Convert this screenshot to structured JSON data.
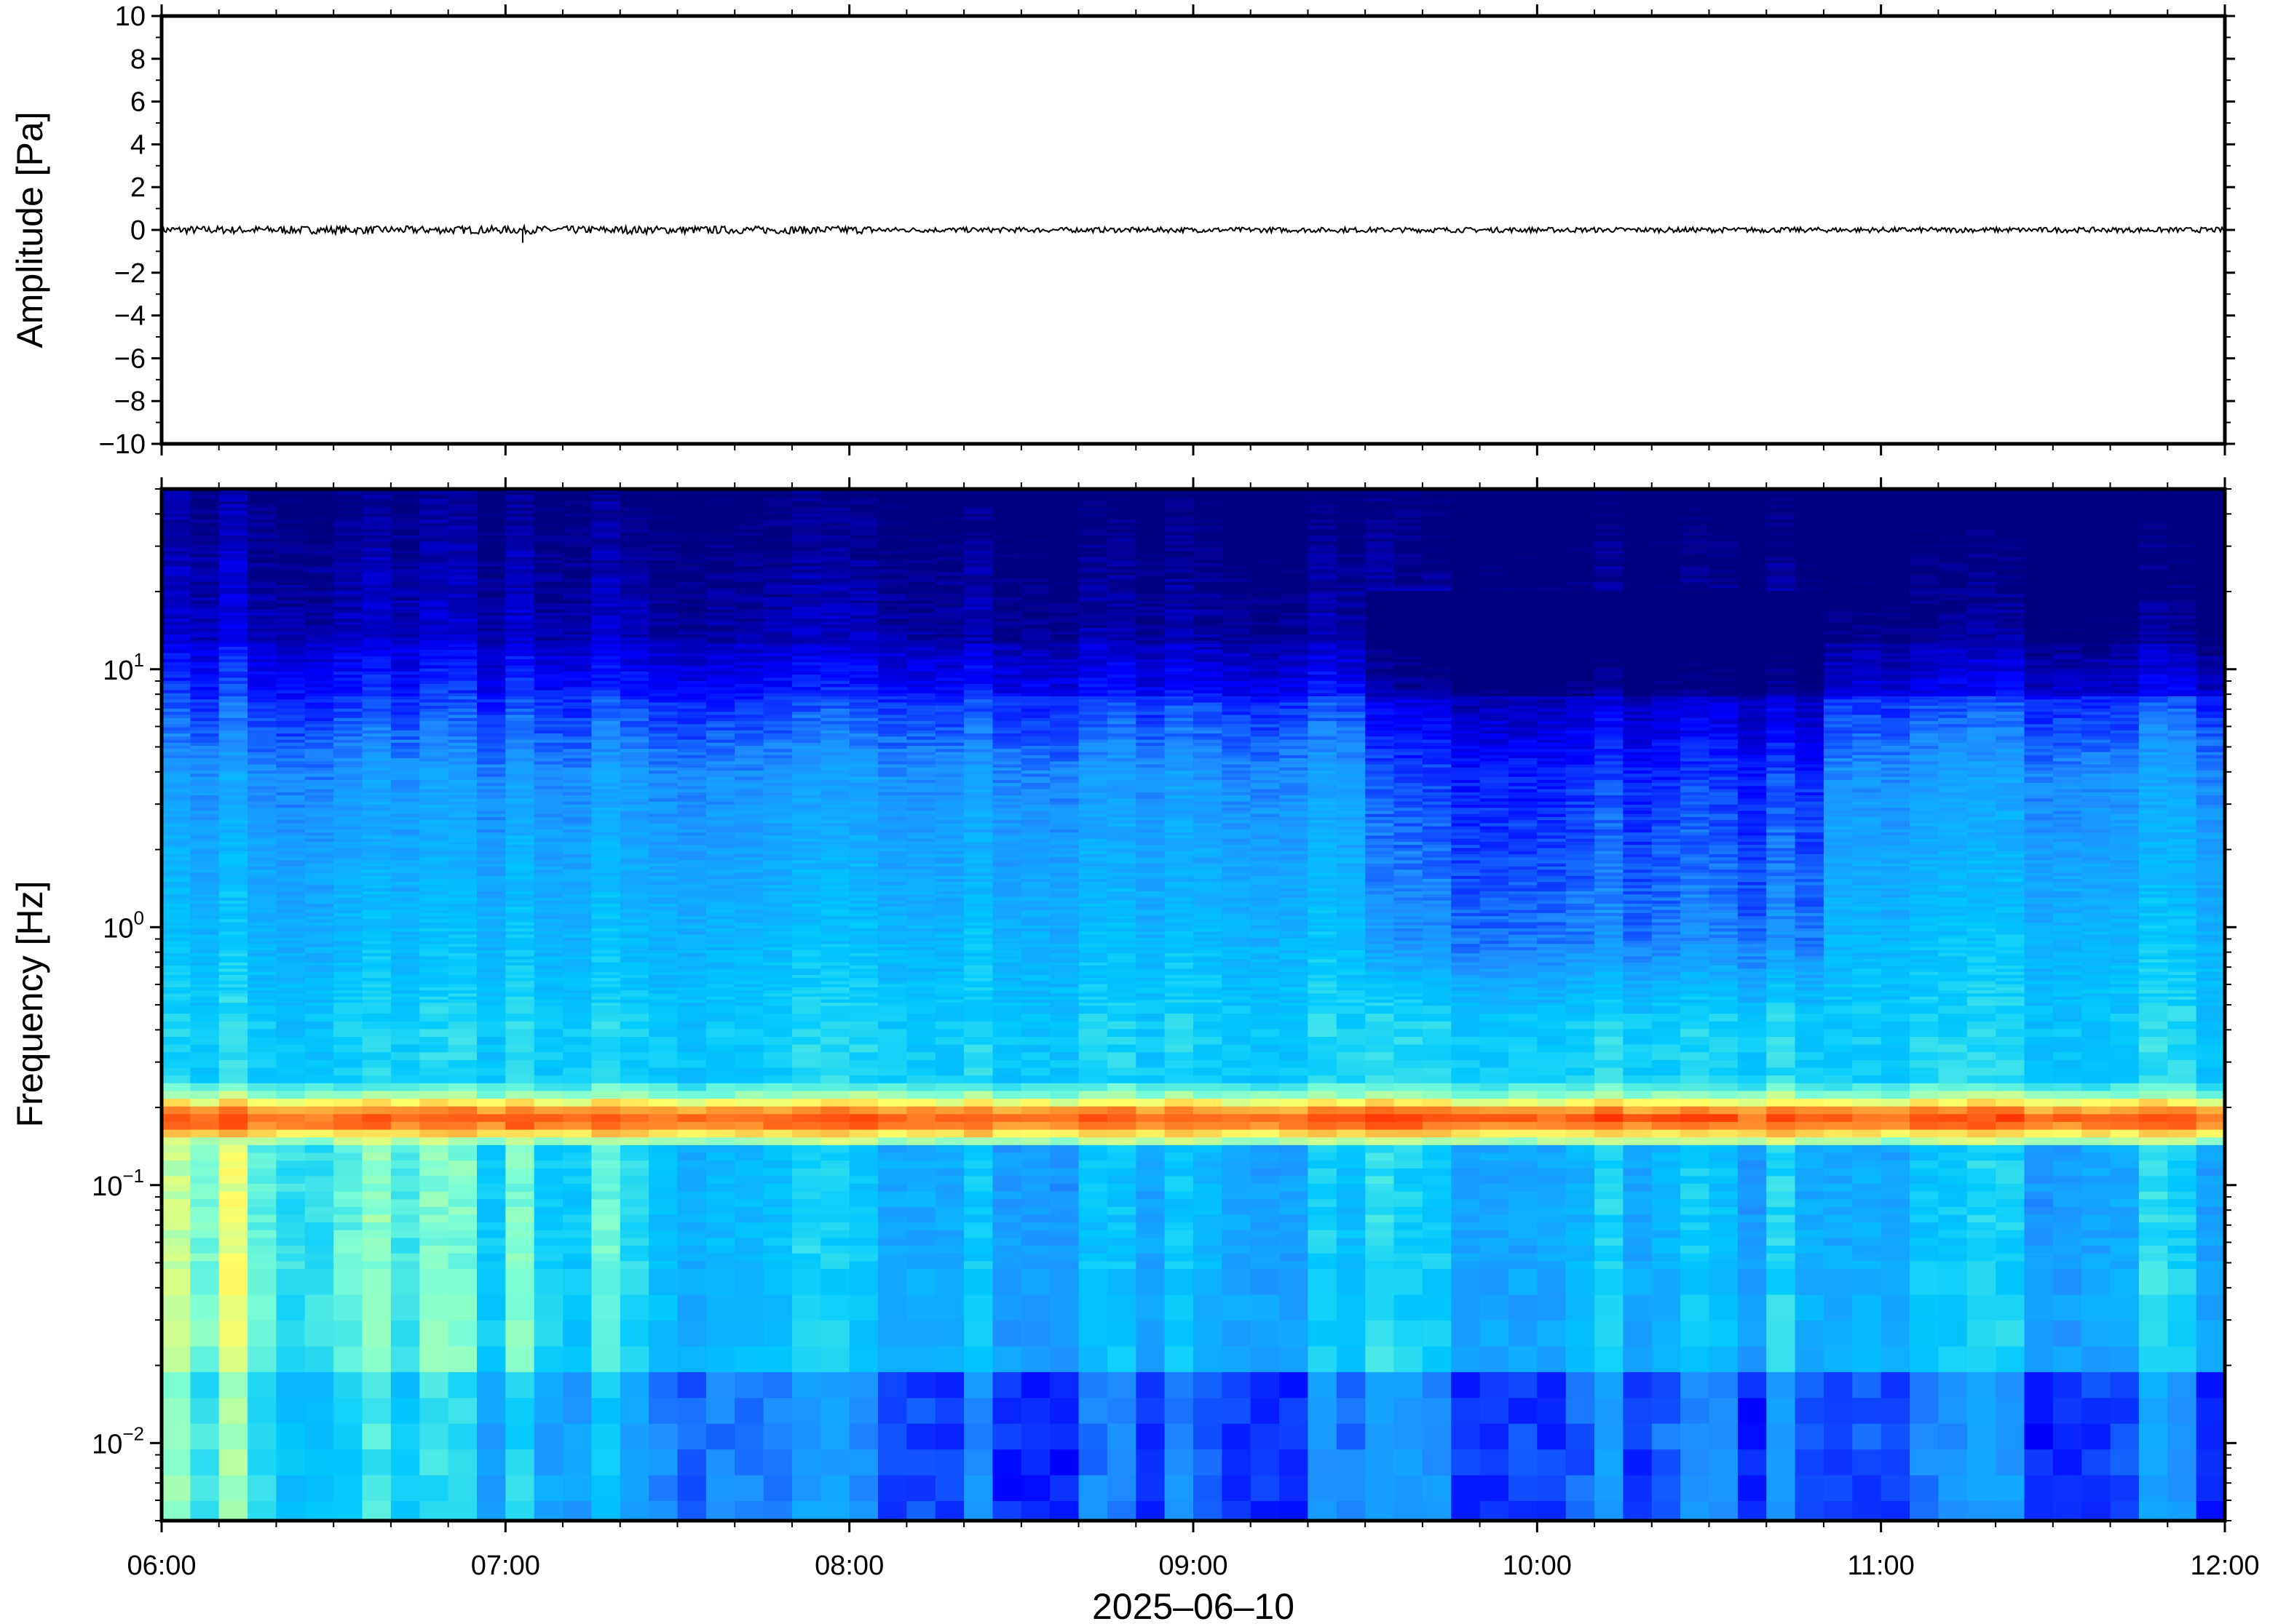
{
  "chart_data": [
    {
      "type": "line",
      "panel": "waveform",
      "ylabel": "Amplitude [Pa]",
      "ylim": [
        -10,
        10
      ],
      "yticks": [
        10,
        8,
        6,
        4,
        2,
        0,
        -2,
        -4,
        -6,
        -8,
        -10
      ],
      "ytick_labels": [
        "10",
        "8",
        "6",
        "4",
        "2",
        "0",
        "−2",
        "−4",
        "−6",
        "−8",
        "−10"
      ],
      "x_range": [
        "06:00",
        "12:00"
      ],
      "series": [
        {
          "description_values": {
            "mean": 0.0,
            "noise_amplitude": 0.15,
            "spike": {
              "time": "07:03",
              "value": -0.6
            }
          }
        }
      ],
      "grid": false
    },
    {
      "type": "heatmap",
      "panel": "spectrogram",
      "ylabel": "Frequency [Hz]",
      "yscale": "log",
      "ylim": [
        0.005,
        50
      ],
      "yticks": [
        {
          "base": "10",
          "exp": "1",
          "value": 10
        },
        {
          "base": "10",
          "exp": "0",
          "value": 1
        },
        {
          "base": "10",
          "exp": "−1",
          "value": 0.1
        },
        {
          "base": "10",
          "exp": "−2",
          "value": 0.01
        }
      ],
      "xlabel": "2025–06–10",
      "xtick_labels": [
        "06:00",
        "07:00",
        "08:00",
        "09:00",
        "10:00",
        "11:00",
        "12:00"
      ],
      "colormap": "jet",
      "colors": [
        "#000080",
        "#0000ff",
        "#1e90ff",
        "#00c8ff",
        "#7fffd4",
        "#ffff66",
        "#ff9933",
        "#ff3300"
      ],
      "features": {
        "microseism_band_hz": [
          0.14,
          0.25
        ],
        "microseism_peak_hz": 0.18,
        "quiet_period": [
          "09:28",
          "10:52"
        ]
      }
    }
  ]
}
